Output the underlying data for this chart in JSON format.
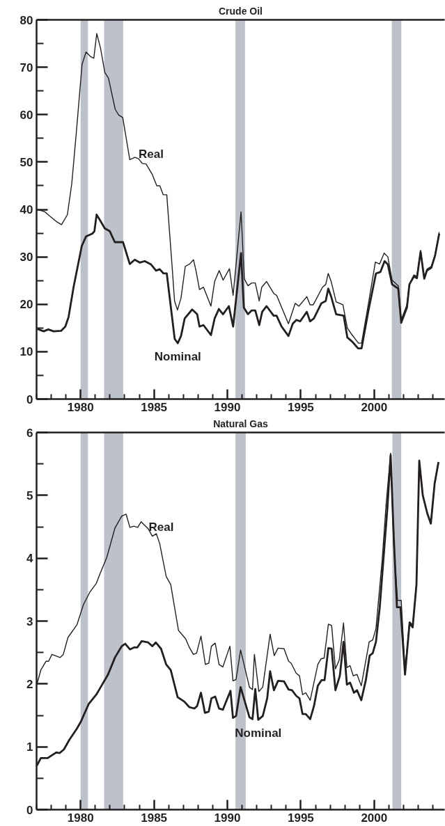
{
  "chart_data": [
    {
      "type": "line",
      "title": "Crude Oil",
      "xlim": [
        1977,
        2004.8
      ],
      "ylim": [
        0,
        80
      ],
      "xticks": [
        {
          "value": 1977,
          "label": null
        },
        {
          "value": 1978,
          "label": null
        },
        {
          "value": 1979,
          "label": null
        },
        1980,
        {
          "value": 1981,
          "label": null
        },
        {
          "value": 1982,
          "label": null
        },
        {
          "value": 1983,
          "label": null
        },
        {
          "value": 1984,
          "label": null
        },
        1985,
        {
          "value": 1986,
          "label": null
        },
        {
          "value": 1987,
          "label": null
        },
        {
          "value": 1988,
          "label": null
        },
        {
          "value": 1989,
          "label": null
        },
        1990,
        {
          "value": 1991,
          "label": null
        },
        {
          "value": 1992,
          "label": null
        },
        {
          "value": 1993,
          "label": null
        },
        {
          "value": 1994,
          "label": null
        },
        1995,
        {
          "value": 1996,
          "label": null
        },
        {
          "value": 1997,
          "label": null
        },
        {
          "value": 1998,
          "label": null
        },
        {
          "value": 1999,
          "label": null
        },
        2000,
        {
          "value": 2001,
          "label": null
        },
        {
          "value": 2002,
          "label": null
        },
        {
          "value": 2003,
          "label": null
        },
        {
          "value": 2004,
          "label": null
        }
      ],
      "yticks": [
        0,
        {
          "value": 5,
          "label": null
        },
        10,
        {
          "value": 15,
          "label": null
        },
        20,
        {
          "value": 25,
          "label": null
        },
        30,
        {
          "value": 35,
          "label": null
        },
        40,
        {
          "value": 45,
          "label": null
        },
        50,
        {
          "value": 55,
          "label": null
        },
        60,
        {
          "value": 65,
          "label": null
        },
        70,
        {
          "value": 75,
          "label": null
        },
        80
      ],
      "grid": false,
      "bands": [
        {
          "axis": "x",
          "from": 1980.0,
          "to": 1980.5,
          "color": "#bcc1ca"
        },
        {
          "axis": "x",
          "from": 1981.6,
          "to": 1982.9,
          "color": "#bcc1ca"
        },
        {
          "axis": "x",
          "from": 1990.55,
          "to": 1991.2,
          "color": "#bcc1ca"
        },
        {
          "axis": "x",
          "from": 2001.2,
          "to": 2001.85,
          "color": "#bcc1ca"
        }
      ],
      "series": [
        {
          "name": "Real",
          "color": "#231f20",
          "x": [
            1977.06,
            1977.57,
            1977.9,
            1978.33,
            1978.7,
            1979.1,
            1979.4,
            1979.7,
            1980.1,
            1980.37,
            1980.7,
            1980.9,
            1981.1,
            1981.36,
            1981.65,
            1981.9,
            1982.36,
            1982.6,
            1982.87,
            1983.35,
            1983.7,
            1983.95,
            1984.2,
            1984.46,
            1984.88,
            1985.19,
            1985.4,
            1985.63,
            1985.87,
            1986.24,
            1986.4,
            1986.6,
            1986.84,
            1987.13,
            1987.43,
            1987.69,
            1987.86,
            1988.1,
            1988.37,
            1988.88,
            1989.13,
            1989.44,
            1989.71,
            1990.14,
            1990.39,
            1990.93,
            1991.15,
            1991.4,
            1991.66,
            1991.9,
            1992.17,
            1992.34,
            1992.67,
            1993.18,
            1993.35,
            1994.16,
            1994.62,
            1994.87,
            1995.41,
            1995.63,
            1995.85,
            1996.48,
            1996.7,
            1996.87,
            1997.07,
            1997.41,
            1997.87,
            1998.17,
            1998.43,
            1998.93,
            1999.14,
            1999.61,
            2000.08,
            2000.37,
            2000.68,
            2000.93,
            2001.22,
            2001.64,
            2001.84,
            2002.23,
            2002.4,
            2002.71,
            2002.91,
            2003.16,
            2003.41,
            2003.59,
            2003.89,
            2004.15,
            2004.43
          ],
          "values": [
            40.0,
            39.5,
            38.6,
            37.5,
            36.8,
            38.9,
            45.5,
            55.9,
            70.6,
            73.2,
            72.2,
            71.9,
            77.1,
            74,
            68.9,
            67.7,
            61.1,
            59.9,
            59.4,
            50.5,
            51.0,
            50.7,
            49.7,
            49.6,
            47.4,
            45.0,
            45.0,
            43.1,
            43.1,
            27.7,
            20.7,
            18.8,
            21.3,
            28.0,
            28.5,
            29.4,
            27.1,
            23.1,
            23.6,
            19.6,
            24.8,
            27.1,
            25.1,
            27.5,
            21.9,
            39.5,
            25.4,
            23.9,
            24.5,
            24.5,
            20.7,
            23.6,
            24.8,
            22.2,
            21.9,
            15.9,
            20.2,
            19.6,
            21.6,
            19.9,
            19.9,
            23.6,
            24.2,
            26.5,
            24.8,
            20.5,
            19.9,
            15.0,
            13.8,
            11.8,
            11.8,
            20.2,
            28.9,
            28.5,
            30.8,
            30.0,
            25.1,
            23.9,
            16.7,
            19.9,
            24.2,
            26.2,
            25.9,
            31.4,
            25.6,
            27.4,
            28.0,
            30.5,
            35.2
          ]
        },
        {
          "name": "Nominal",
          "color": "#231f20",
          "x": [
            1977.06,
            1977.48,
            1977.8,
            1978.16,
            1978.67,
            1978.96,
            1979.18,
            1979.52,
            1980.08,
            1980.37,
            1980.8,
            1980.94,
            1981.09,
            1981.31,
            1981.65,
            1981.99,
            1982.33,
            1982.89,
            1983.35,
            1983.69,
            1984.03,
            1984.37,
            1984.8,
            1985.14,
            1985.39,
            1985.65,
            1985.87,
            1986.41,
            1986.62,
            1986.84,
            1987.09,
            1987.6,
            1987.94,
            1988.1,
            1988.37,
            1988.88,
            1989.13,
            1989.42,
            1989.7,
            1990.1,
            1990.39,
            1990.93,
            1991.12,
            1991.4,
            1991.66,
            1991.9,
            1992.17,
            1992.37,
            1992.67,
            1993.15,
            1993.35,
            1993.69,
            1994.16,
            1994.45,
            1994.7,
            1994.96,
            1995.41,
            1995.63,
            1995.89,
            1996.4,
            1996.7,
            1996.87,
            1997.07,
            1997.41,
            1997.92,
            1998.17,
            1998.51,
            1998.9,
            1999.14,
            1999.61,
            2000.12,
            2000.42,
            2000.71,
            2000.93,
            2001.22,
            2001.64,
            2001.84,
            2002.23,
            2002.4,
            2002.71,
            2002.91,
            2003.16,
            2003.41,
            2003.59,
            2003.89,
            2004.15,
            2004.43
          ],
          "values": [
            14.8,
            14.3,
            14.7,
            14.3,
            14.4,
            15.3,
            17.3,
            23.6,
            32.3,
            34.3,
            34.9,
            35.4,
            38.9,
            37.8,
            36.0,
            35.4,
            33.1,
            33.1,
            28.5,
            29.4,
            28.8,
            29.1,
            28.4,
            27.1,
            27.4,
            26.5,
            26.5,
            12.7,
            11.8,
            13.3,
            17.0,
            18.9,
            17.9,
            15.3,
            15.6,
            13.5,
            17.0,
            19.0,
            17.9,
            19.6,
            15.3,
            30.8,
            19.3,
            17.9,
            18.7,
            18.7,
            15.6,
            18.4,
            19.6,
            17.6,
            17.6,
            15.3,
            13.3,
            15.9,
            16.7,
            16.4,
            18.4,
            16.4,
            17.0,
            20.2,
            20.7,
            23.3,
            21.6,
            17.9,
            17.6,
            13.0,
            12.1,
            10.7,
            10.7,
            18.7,
            26.5,
            26.8,
            29.1,
            28.4,
            24.2,
            23.3,
            16.1,
            19.3,
            24.2,
            25.9,
            25.5,
            31.1,
            25.4,
            27.1,
            27.7,
            30.3,
            34.9
          ]
        }
      ]
    },
    {
      "type": "line",
      "title": "Natural Gas",
      "xlim": [
        1977,
        2004.8
      ],
      "ylim": [
        0,
        6
      ],
      "xticks": [
        {
          "value": 1977,
          "label": null
        },
        {
          "value": 1978,
          "label": null
        },
        {
          "value": 1979,
          "label": null
        },
        1980,
        {
          "value": 1981,
          "label": null
        },
        {
          "value": 1982,
          "label": null
        },
        {
          "value": 1983,
          "label": null
        },
        {
          "value": 1984,
          "label": null
        },
        1985,
        {
          "value": 1986,
          "label": null
        },
        {
          "value": 1987,
          "label": null
        },
        {
          "value": 1988,
          "label": null
        },
        {
          "value": 1989,
          "label": null
        },
        1990,
        {
          "value": 1991,
          "label": null
        },
        {
          "value": 1992,
          "label": null
        },
        {
          "value": 1993,
          "label": null
        },
        {
          "value": 1994,
          "label": null
        },
        1995,
        {
          "value": 1996,
          "label": null
        },
        {
          "value": 1997,
          "label": null
        },
        {
          "value": 1998,
          "label": null
        },
        {
          "value": 1999,
          "label": null
        },
        2000,
        {
          "value": 2001,
          "label": null
        },
        {
          "value": 2002,
          "label": null
        },
        {
          "value": 2003,
          "label": null
        },
        {
          "value": 2004,
          "label": null
        }
      ],
      "yticks": [
        0,
        {
          "value": 0.5,
          "label": null
        },
        1,
        {
          "value": 1.5,
          "label": null
        },
        2,
        {
          "value": 2.5,
          "label": null
        },
        3,
        {
          "value": 3.5,
          "label": null
        },
        4,
        {
          "value": 4.5,
          "label": null
        },
        5,
        {
          "value": 5.5,
          "label": null
        },
        6
      ],
      "grid": false,
      "bands": [
        {
          "axis": "x",
          "from": 1980.0,
          "to": 1980.5,
          "color": "#bcc1ca"
        },
        {
          "axis": "x",
          "from": 1981.6,
          "to": 1982.9,
          "color": "#bcc1ca"
        },
        {
          "axis": "x",
          "from": 1990.55,
          "to": 1991.25,
          "color": "#bcc1ca"
        },
        {
          "axis": "x",
          "from": 2001.24,
          "to": 2001.84,
          "color": "#bcc1ca"
        }
      ],
      "series": [
        {
          "name": "Real",
          "color": "#231f20",
          "x": [
            1977.02,
            1977.29,
            1977.64,
            1977.82,
            1978.05,
            1978.6,
            1978.82,
            1979.14,
            1979.75,
            1980.19,
            1980.63,
            1981.07,
            1981.37,
            1981.78,
            1982.34,
            1982.8,
            1983.1,
            1983.36,
            1983.63,
            1983.89,
            1984.12,
            1984.6,
            1984.89,
            1985.16,
            1985.39,
            1985.83,
            1986.14,
            1986.67,
            1987.15,
            1987.41,
            1987.68,
            1987.9,
            1988.2,
            1988.5,
            1988.73,
            1988.91,
            1989.17,
            1989.43,
            1989.69,
            1990.17,
            1990.38,
            1990.59,
            1990.9,
            1991.5,
            1991.71,
            1991.84,
            1992.14,
            1992.41,
            1992.91,
            1993.19,
            1993.45,
            1993.86,
            1994.17,
            1994.34,
            1994.69,
            1994.91,
            1995.12,
            1995.34,
            1995.64,
            1996.16,
            1996.38,
            1996.59,
            1996.88,
            1997.1,
            1997.36,
            1997.62,
            1997.91,
            1998.14,
            1998.36,
            1998.57,
            1998.83,
            1999.12,
            1999.66,
            1999.9,
            2000.12,
            2000.55,
            2000.81,
            2001.12,
            2001.33,
            2001.59,
            2001.84,
            2002.1,
            2002.41,
            2002.62,
            2002.88,
            2003.07,
            2003.31,
            2003.62,
            2003.86,
            2004.12,
            2004.38
          ],
          "values": [
            1.99,
            2.22,
            2.36,
            2.36,
            2.47,
            2.42,
            2.47,
            2.74,
            2.94,
            3.26,
            3.46,
            3.6,
            3.78,
            4.01,
            4.48,
            4.67,
            4.7,
            4.49,
            4.51,
            4.49,
            4.58,
            4.47,
            4.35,
            4.39,
            4.23,
            3.71,
            3.58,
            2.85,
            2.72,
            2.58,
            2.47,
            2.49,
            2.76,
            2.31,
            2.33,
            2.6,
            2.65,
            2.31,
            2.27,
            2.6,
            2.05,
            2.07,
            2.54,
            1.95,
            1.91,
            2.47,
            1.88,
            1.95,
            2.79,
            2.45,
            2.57,
            2.56,
            2.36,
            2.33,
            2.17,
            2.13,
            1.83,
            1.86,
            1.74,
            2.31,
            2.4,
            2.41,
            2.95,
            2.93,
            2.24,
            2.38,
            2.97,
            2.26,
            2.29,
            2.13,
            2.15,
            1.97,
            2.67,
            2.7,
            2.88,
            3.99,
            4.85,
            5.67,
            4.21,
            3.33,
            3.33,
            2.22,
            2.99,
            2.94,
            3.58,
            5.56,
            5.0,
            4.72,
            4.57,
            5.21,
            5.53
          ]
        },
        {
          "name": "Nominal",
          "color": "#231f20",
          "x": [
            1977.02,
            1977.29,
            1977.55,
            1977.76,
            1978.08,
            1978.35,
            1978.57,
            1978.87,
            1979.23,
            1979.75,
            1980.02,
            1980.55,
            1981.07,
            1981.37,
            1981.87,
            1982.34,
            1982.8,
            1983.04,
            1983.36,
            1983.63,
            1983.86,
            1984.16,
            1984.6,
            1984.89,
            1985.12,
            1985.48,
            1985.83,
            1986.14,
            1986.61,
            1987.06,
            1987.41,
            1987.76,
            1987.94,
            1988.2,
            1988.47,
            1988.73,
            1988.91,
            1989.17,
            1989.43,
            1989.69,
            1990.21,
            1990.38,
            1990.59,
            1990.9,
            1991.5,
            1991.71,
            1991.9,
            1992.1,
            1992.41,
            1992.71,
            1992.91,
            1993.17,
            1993.45,
            1993.86,
            1994.17,
            1994.4,
            1994.69,
            1994.91,
            1995.12,
            1995.34,
            1995.64,
            1995.9,
            1996.16,
            1996.41,
            1996.62,
            1996.88,
            1997.1,
            1997.36,
            1997.66,
            1997.91,
            1998.14,
            1998.36,
            1998.62,
            1998.83,
            1999.12,
            1999.43,
            1999.69,
            1999.9,
            2000.12,
            2000.38,
            2000.69,
            2000.9,
            2001.12,
            2001.33,
            2001.55,
            2001.79,
            2002.1,
            2002.41,
            2002.62,
            2002.88,
            2003.07,
            2003.31,
            2003.62,
            2003.86,
            2004.12,
            2004.38
          ],
          "values": [
            0.7,
            0.82,
            0.82,
            0.82,
            0.87,
            0.91,
            0.9,
            0.96,
            1.11,
            1.29,
            1.4,
            1.68,
            1.83,
            1.95,
            2.15,
            2.42,
            2.6,
            2.64,
            2.55,
            2.58,
            2.58,
            2.68,
            2.66,
            2.6,
            2.66,
            2.56,
            2.31,
            2.22,
            1.79,
            1.72,
            1.63,
            1.61,
            1.65,
            1.86,
            1.54,
            1.56,
            1.77,
            1.8,
            1.61,
            1.59,
            1.89,
            1.46,
            1.49,
            1.95,
            1.47,
            1.44,
            1.92,
            1.43,
            1.49,
            1.77,
            2.2,
            1.9,
            2.05,
            2.04,
            1.91,
            1.9,
            1.81,
            1.77,
            1.52,
            1.52,
            1.44,
            1.65,
            1.97,
            2.06,
            2.06,
            2.57,
            2.56,
            1.9,
            2.13,
            2.67,
            1.99,
            2.02,
            1.86,
            1.9,
            1.74,
            2.06,
            2.45,
            2.49,
            2.67,
            3.22,
            4.17,
            4.8,
            5.64,
            4.35,
            3.22,
            3.22,
            2.15,
            2.97,
            2.9,
            3.58,
            5.55,
            5.0,
            4.71,
            4.55,
            5.19,
            5.53
          ]
        }
      ]
    }
  ]
}
